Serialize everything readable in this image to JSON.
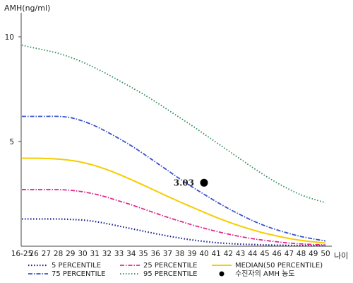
{
  "chart_data": {
    "type": "line",
    "ylabel": "AMH(ng/ml)",
    "xlabel": "나이",
    "categories": [
      "16-25",
      "26",
      "27",
      "28",
      "29",
      "30",
      "31",
      "32",
      "33",
      "34",
      "35",
      "36",
      "37",
      "38",
      "39",
      "40",
      "41",
      "42",
      "43",
      "44",
      "45",
      "46",
      "47",
      "48",
      "49",
      "50"
    ],
    "y_ticks": [
      "5",
      "10"
    ],
    "ylim": [
      0,
      11
    ],
    "grid": false,
    "series": [
      {
        "name": "5 PERCENTILE",
        "color": "#1a1f8a",
        "dash": "1.5,2.5",
        "width": 2.2,
        "values": [
          1.3,
          1.3,
          1.3,
          1.3,
          1.28,
          1.25,
          1.18,
          1.08,
          0.96,
          0.84,
          0.72,
          0.6,
          0.49,
          0.39,
          0.3,
          0.23,
          0.17,
          0.13,
          0.1,
          0.08,
          0.06,
          0.05,
          0.04,
          0.03,
          0.03,
          0.02
        ]
      },
      {
        "name": "25 PERCENTILE",
        "color": "#e0288c",
        "dash": "6,2,1.5,2",
        "width": 1.8,
        "values": [
          2.7,
          2.7,
          2.7,
          2.7,
          2.67,
          2.6,
          2.49,
          2.34,
          2.16,
          1.98,
          1.78,
          1.58,
          1.38,
          1.2,
          1.02,
          0.86,
          0.71,
          0.58,
          0.46,
          0.36,
          0.28,
          0.21,
          0.15,
          0.11,
          0.08,
          0.06
        ]
      },
      {
        "name": "MEDIAN(50 PERCENTILE)",
        "color": "#f5cd00",
        "dash": "",
        "width": 2,
        "values": [
          4.2,
          4.2,
          4.19,
          4.16,
          4.1,
          4.0,
          3.85,
          3.66,
          3.43,
          3.18,
          2.92,
          2.65,
          2.38,
          2.12,
          1.87,
          1.62,
          1.38,
          1.16,
          0.96,
          0.78,
          0.62,
          0.49,
          0.37,
          0.28,
          0.21,
          0.15
        ]
      },
      {
        "name": "75 PERCENTILE",
        "color": "#3852cc",
        "dash": "6,2,1.5,2",
        "width": 1.8,
        "values": [
          6.2,
          6.2,
          6.2,
          6.2,
          6.14,
          5.98,
          5.75,
          5.46,
          5.14,
          4.8,
          4.42,
          4.02,
          3.62,
          3.22,
          2.84,
          2.48,
          2.13,
          1.8,
          1.5,
          1.22,
          0.98,
          0.78,
          0.61,
          0.46,
          0.35,
          0.25
        ]
      },
      {
        "name": "95 PERCENTILE",
        "color": "#2e8b57",
        "dash": "1.5,2.5",
        "width": 1.8,
        "values": [
          9.6,
          9.47,
          9.35,
          9.21,
          9.02,
          8.79,
          8.52,
          8.23,
          7.91,
          7.59,
          7.26,
          6.9,
          6.52,
          6.14,
          5.76,
          5.36,
          4.96,
          4.56,
          4.16,
          3.76,
          3.38,
          3.03,
          2.72,
          2.45,
          2.25,
          2.08
        ]
      }
    ],
    "patient_point": {
      "x": "40",
      "y": 3.03,
      "label": "3.03",
      "legend": "수진자의 AMH 농도",
      "color": "#000000"
    }
  }
}
